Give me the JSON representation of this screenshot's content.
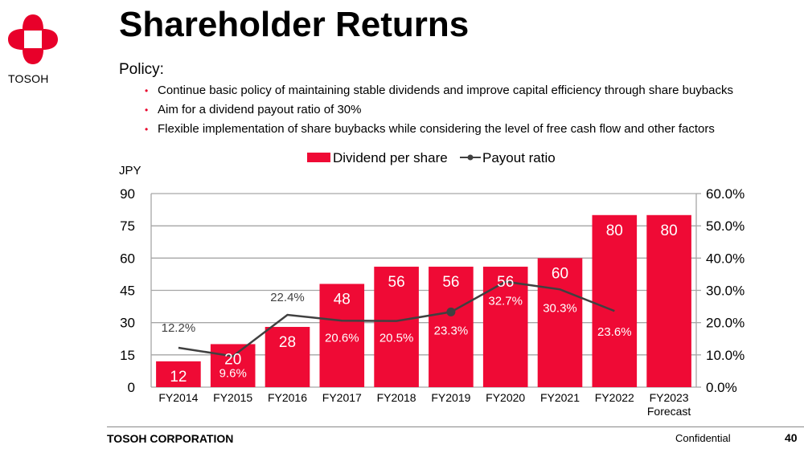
{
  "header": {
    "logo_text": "TOSOH",
    "title": "Shareholder Returns"
  },
  "policy": {
    "heading": "Policy:",
    "bullets": [
      "Continue basic policy of maintaining stable dividends and improve capital efficiency through share buybacks",
      "Aim for a dividend payout ratio of 30%",
      "Flexible implementation of share buybacks while considering the level of free cash flow and other factors"
    ]
  },
  "colors": {
    "brand_red": "#e8002a",
    "bar": "#ef0a35",
    "line": "#404040"
  },
  "chart_data": {
    "type": "bar",
    "title": "",
    "categories": [
      "FY2014",
      "FY2015",
      "FY2016",
      "FY2017",
      "FY2018",
      "FY2019",
      "FY2020",
      "FY2021",
      "FY2022",
      "FY2023"
    ],
    "category_sublabels": [
      "",
      "",
      "",
      "",
      "",
      "",
      "",
      "",
      "",
      "Forecast"
    ],
    "ylabel": "JPY",
    "ylim": [
      0,
      90
    ],
    "yticks": [
      "0",
      "15",
      "30",
      "45",
      "60",
      "75",
      "90"
    ],
    "y2lim": [
      0,
      60
    ],
    "y2ticks": [
      "0.0%",
      "10.0%",
      "20.0%",
      "30.0%",
      "40.0%",
      "50.0%",
      "60.0%"
    ],
    "grid": true,
    "legend": "top-center",
    "series": [
      {
        "name": "Dividend per share",
        "type": "bar",
        "axis": "left",
        "values": [
          12,
          20,
          28,
          48,
          56,
          56,
          56,
          60,
          80,
          80
        ],
        "labels": [
          "12",
          "20",
          "28",
          "48",
          "56",
          "56",
          "56",
          "60",
          "80",
          "80"
        ]
      },
      {
        "name": "Payout ratio",
        "type": "line",
        "axis": "right",
        "values": [
          12.2,
          9.6,
          22.4,
          20.6,
          20.5,
          23.3,
          32.7,
          30.3,
          23.6,
          null
        ],
        "labels": [
          "12.2%",
          "9.6%",
          "22.4%",
          "20.6%",
          "20.5%",
          "23.3%",
          "32.7%",
          "30.3%",
          "23.6%",
          ""
        ]
      }
    ]
  },
  "footer": {
    "company": "TOSOH CORPORATION",
    "confidential": "Confidential",
    "page": "40"
  }
}
